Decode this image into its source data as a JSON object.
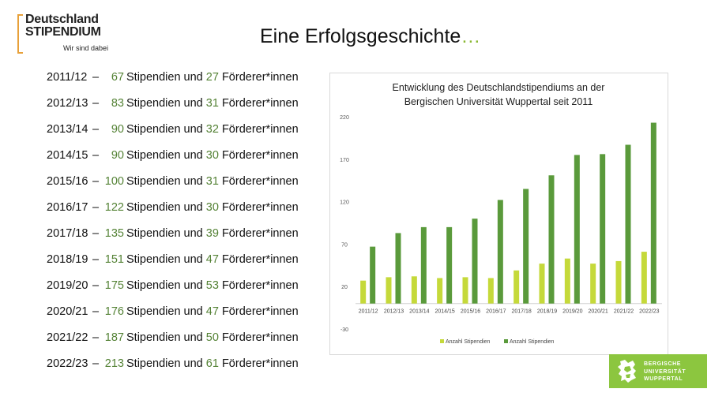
{
  "logo": {
    "line1": "Deutschland",
    "line2": "STIPENDIUM",
    "tagline": "Wir sind dabei"
  },
  "title": {
    "text": "Eine Erfolgsgeschichte",
    "dots": "…"
  },
  "list": {
    "words_mid": "Stipendien und",
    "words_end": "Förderer*innen",
    "rows": [
      {
        "year": "2011/12",
        "dash": "–",
        "stip": "67",
        "foerd": "27"
      },
      {
        "year": "2012/13",
        "dash": "–",
        "stip": "83",
        "foerd": "31"
      },
      {
        "year": "2013/14",
        "dash": "–",
        "stip": "90",
        "foerd": "32"
      },
      {
        "year": "2014/15",
        "dash": "–",
        "stip": "90",
        "foerd": "30"
      },
      {
        "year": "2015/16",
        "dash": "–",
        "stip": "100",
        "foerd": "31"
      },
      {
        "year": "2016/17",
        "dash": "–",
        "stip": "122",
        "foerd": "30"
      },
      {
        "year": "2017/18",
        "dash": "–",
        "stip": "135",
        "foerd": "39"
      },
      {
        "year": "2018/19",
        "dash": "–",
        "stip": "151",
        "foerd": "47"
      },
      {
        "year": "2019/20",
        "dash": "–",
        "stip": "175",
        "foerd": "53"
      },
      {
        "year": "2020/21",
        "dash": "–",
        "stip": "176",
        "foerd": "47"
      },
      {
        "year": "2021/22",
        "dash": "–",
        "stip": "187",
        "foerd": "50"
      },
      {
        "year": "2022/23",
        "dash": "–",
        "stip": "213",
        "foerd": "61"
      }
    ]
  },
  "chart_data": {
    "type": "bar",
    "title_line1": "Entwicklung des Deutschlandstipendiums an der",
    "title_line2": "Bergischen Universität Wuppertal seit 2011",
    "categories": [
      "2011/12",
      "2012/13",
      "2013/14",
      "2014/15",
      "2015/16",
      "2016/17",
      "2017/18",
      "2018/19",
      "2019/20",
      "2020/21",
      "2021/22",
      "2022/23"
    ],
    "series": [
      {
        "name": "Anzahl Stipendien",
        "color": "#c5d93a",
        "values": [
          27,
          31,
          32,
          30,
          31,
          30,
          39,
          47,
          53,
          47,
          50,
          61
        ]
      },
      {
        "name": "Anzahl Stipendien",
        "color": "#5a9a3b",
        "values": [
          67,
          83,
          90,
          90,
          100,
          122,
          135,
          151,
          175,
          176,
          187,
          213
        ]
      }
    ],
    "ylim": [
      -30,
      220
    ],
    "yticks": [
      -30,
      20,
      70,
      120,
      170,
      220
    ],
    "grid": false,
    "legend": "bottom"
  },
  "brand": {
    "line1": "BERGISCHE",
    "line2": "UNIVERSITÄT",
    "line3": "WUPPERTAL",
    "color": "#8cc63f"
  }
}
